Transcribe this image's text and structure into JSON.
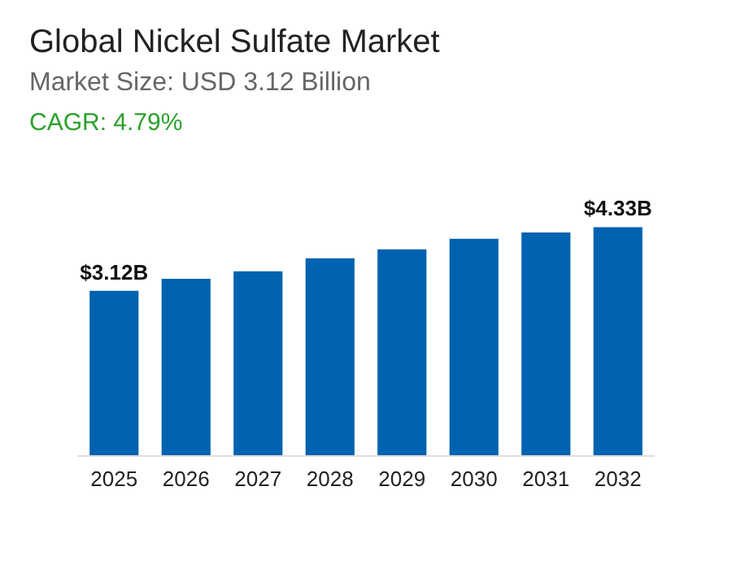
{
  "chart_data": {
    "type": "bar",
    "title": "Global Nickel Sulfate Market",
    "subtitle": "Market Size: USD 3.12 Billion",
    "annotations": [
      "CAGR: 4.79%"
    ],
    "categories": [
      "2025",
      "2026",
      "2027",
      "2028",
      "2029",
      "2030",
      "2031",
      "2032"
    ],
    "values": [
      3.12,
      3.35,
      3.49,
      3.74,
      3.91,
      4.11,
      4.23,
      4.33
    ],
    "value_labels": [
      "$3.12B",
      null,
      null,
      null,
      null,
      null,
      null,
      "$4.33B"
    ],
    "color": "#0062b0"
  }
}
